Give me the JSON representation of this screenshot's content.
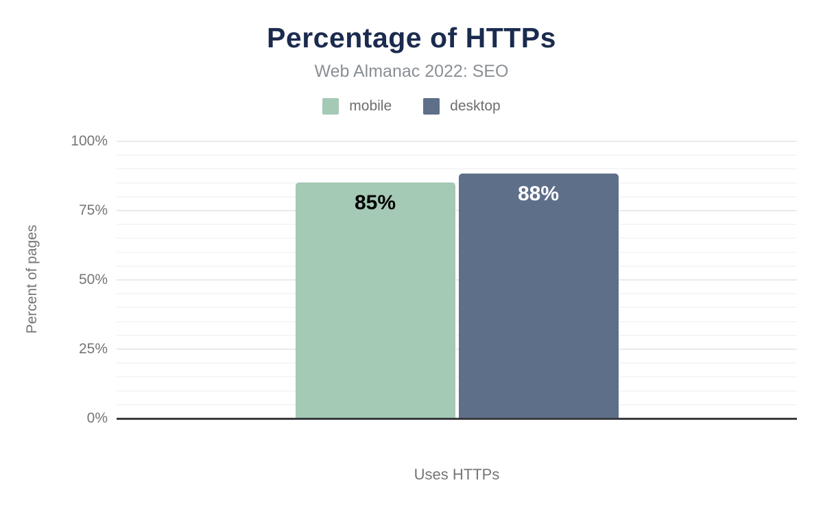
{
  "header": {
    "title": "Percentage of HTTPs",
    "subtitle": "Web Almanac 2022: SEO"
  },
  "chart_data": {
    "type": "bar",
    "title": "Percentage of HTTPs",
    "subtitle": "Web Almanac 2022: SEO",
    "categories": [
      "Uses HTTPs"
    ],
    "series": [
      {
        "name": "mobile",
        "values": [
          85
        ],
        "label": "85%",
        "color": "#a4c9b5",
        "label_color": "#000000"
      },
      {
        "name": "desktop",
        "values": [
          88
        ],
        "label": "88%",
        "color": "#5e6f8a",
        "label_color": "#ffffff"
      }
    ],
    "xlabel": "Uses HTTPs",
    "ylabel": "Percent of pages",
    "ylim": [
      0,
      100
    ],
    "y_ticks": [
      "0%",
      "25%",
      "50%",
      "75%",
      "100%"
    ],
    "y_tick_values": [
      0,
      25,
      50,
      75,
      100
    ],
    "minor_tick_step": 5,
    "grid": "horizontal",
    "legend_position": "top"
  },
  "colors": {
    "title": "#1b2b4e",
    "subtitle": "#8a8f94",
    "axis_text": "#757575",
    "legend_text": "#6e6e6e",
    "baseline": "#3a3b3f",
    "grid_major": "#eaeaea",
    "grid_minor": "#f6f6f6",
    "background": "#ffffff",
    "mobile": "#a4c9b5",
    "desktop": "#5e6f8a"
  }
}
